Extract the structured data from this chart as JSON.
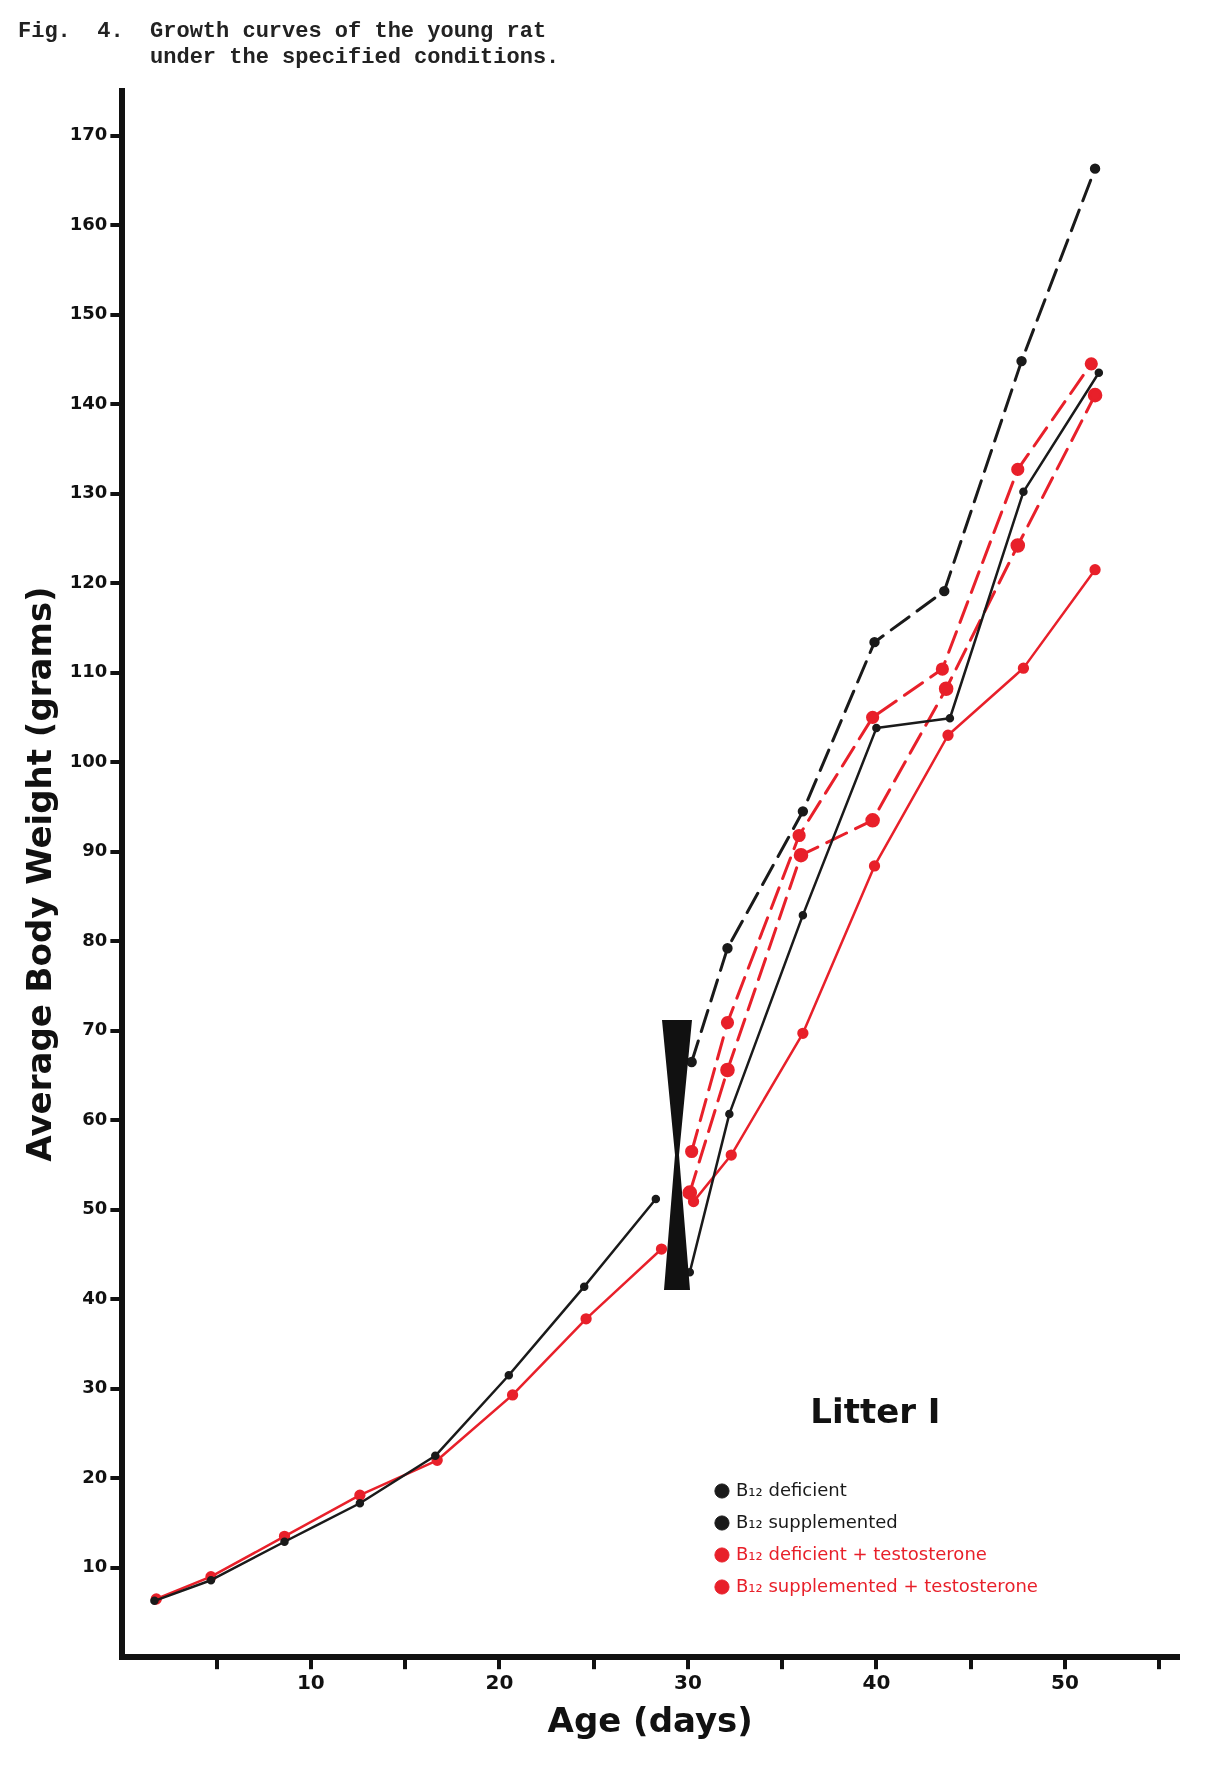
{
  "chart_data": {
    "type": "line",
    "title": "Fig.  4.  Growth curves of the young rat\n          under the specified conditions.",
    "xlabel": "Age (days)",
    "ylabel": "Average Body Weight (grams)",
    "legend_title": "Litter I",
    "xlim": [
      0,
      56
    ],
    "xticks": [
      {
        "value": 5,
        "label": null
      },
      10,
      {
        "value": 15,
        "label": null
      },
      20,
      {
        "value": 25,
        "label": null
      },
      30,
      {
        "value": 35,
        "label": null
      },
      40,
      {
        "value": 45,
        "label": null
      },
      50,
      {
        "value": 55,
        "label": null
      }
    ],
    "ylim": [
      0,
      175
    ],
    "yticks": [
      10,
      20,
      30,
      40,
      50,
      60,
      70,
      80,
      90,
      100,
      110,
      120,
      130,
      140,
      150,
      160,
      170
    ],
    "grid": false,
    "legend": "bottom right",
    "marker": "circle",
    "series": [
      {
        "name": "B₁₂ deficient",
        "color": "#1a1a1a",
        "line_style": "solid",
        "x": [
          1.7,
          4.7,
          8.6,
          12.6,
          16.6,
          20.5,
          24.5,
          28.3,
          null,
          30.1,
          32.2,
          36.1,
          40.0,
          43.9,
          47.8,
          51.8
        ],
        "values": [
          6.3,
          8.6,
          12.9,
          17.2,
          22.5,
          31.5,
          41.4,
          51.2,
          null,
          43,
          60.7,
          82.9,
          103.8,
          104.9,
          130.2,
          143.5
        ]
      },
      {
        "name": "B₁₂ supplemented",
        "color": "#1a1a1a",
        "line_style": "dashed",
        "x": [
          30.2,
          32.1,
          36.1,
          39.9,
          43.6,
          47.7,
          51.6
        ],
        "values": [
          66.5,
          79.2,
          94.5,
          113.4,
          119.1,
          144.8,
          166.3
        ]
      },
      {
        "name": "B₁₂ deficient + testosterone",
        "color": "#e8202a",
        "line_style": "solid",
        "x": [
          1.8,
          4.7,
          8.6,
          12.6,
          16.7,
          20.7,
          24.6,
          28.6,
          null,
          30.3,
          32.3,
          36.1,
          39.9,
          43.8,
          47.8,
          51.6
        ],
        "values": [
          6.5,
          9.0,
          13.5,
          18.1,
          22.0,
          29.3,
          37.8,
          45.6,
          null,
          50.9,
          56.1,
          69.7,
          88.4,
          103.0,
          110.5,
          121.5
        ]
      },
      {
        "name": "B₁₂ supplemented + testosterone",
        "color": "#e8202a",
        "line_style": "dashed",
        "x": [
          30.2,
          32.1,
          35.9,
          39.8,
          43.5,
          47.5,
          51.4
        ],
        "values": [
          56.5,
          70.9,
          91.8,
          105.0,
          110.4,
          132.7,
          144.5
        ]
      },
      {
        "color": "#e8202a",
        "line_style": "dashed",
        "x": [
          30.1,
          32.1,
          36.0,
          39.8,
          43.7,
          47.5,
          51.6
        ],
        "values": [
          51.9,
          65.6,
          89.6,
          93.5,
          108.2,
          124.2,
          141.0
        ]
      }
    ]
  }
}
